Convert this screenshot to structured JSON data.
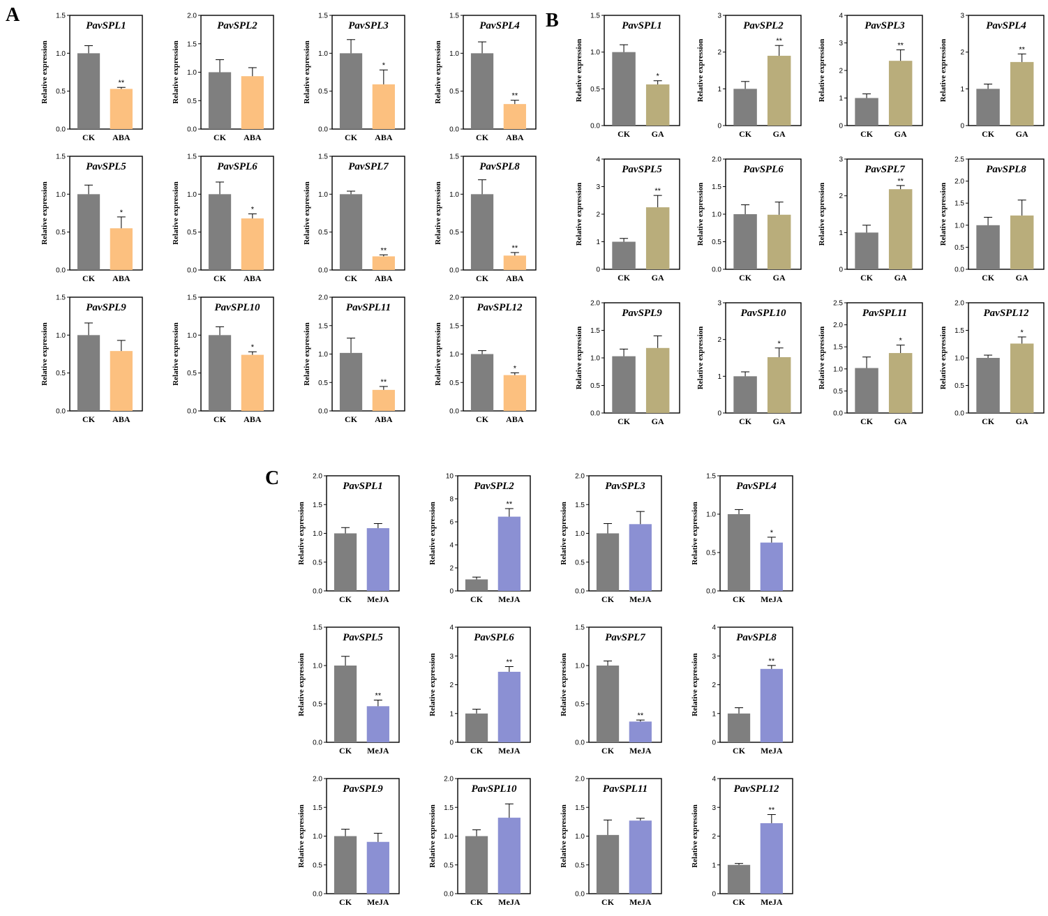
{
  "figure": {
    "colors": {
      "ck": "#7f7f7f",
      "aba": "#fcc07f",
      "ga": "#b9ad7b",
      "meja": "#8b90d3"
    },
    "treatment_labels": {
      "A": "ABA",
      "B": "GA",
      "C": "MeJA"
    },
    "control_label": "CK",
    "y_label": "Relative expression"
  },
  "chart_data": [
    {
      "panel": "A",
      "type": "bar",
      "title": "PavSPL1",
      "categories": [
        "CK",
        "ABA"
      ],
      "values": [
        1.0,
        0.53
      ],
      "errors": [
        0.1,
        0.02
      ],
      "sig": "**",
      "ylim": [
        0,
        1.5
      ],
      "ticks": [
        "0.0",
        "0.5",
        "1.0",
        "1.5"
      ],
      "ylabel": "Relative expression"
    },
    {
      "panel": "A",
      "type": "bar",
      "title": "PavSPL2",
      "categories": [
        "CK",
        "ABA"
      ],
      "values": [
        1.0,
        0.93
      ],
      "errors": [
        0.22,
        0.15
      ],
      "sig": "",
      "ylim": [
        0,
        2
      ],
      "ticks": [
        "0.0",
        "0.5",
        "1.0",
        "1.5",
        "2.0"
      ],
      "ylabel": "Relative expression"
    },
    {
      "panel": "A",
      "type": "bar",
      "title": "PavSPL3",
      "categories": [
        "CK",
        "ABA"
      ],
      "values": [
        1.0,
        0.59
      ],
      "errors": [
        0.18,
        0.19
      ],
      "sig": "*",
      "ylim": [
        0,
        1.5
      ],
      "ticks": [
        "0.0",
        "0.5",
        "1.0",
        "1.5"
      ],
      "ylabel": "Relative expression"
    },
    {
      "panel": "A",
      "type": "bar",
      "title": "PavSPL4",
      "categories": [
        "CK",
        "ABA"
      ],
      "values": [
        1.0,
        0.33
      ],
      "errors": [
        0.15,
        0.05
      ],
      "sig": "**",
      "ylim": [
        0,
        1.5
      ],
      "ticks": [
        "0.0",
        "0.5",
        "1.0",
        "1.5"
      ],
      "ylabel": "Relative expression"
    },
    {
      "panel": "A",
      "type": "bar",
      "title": "PavSPL5",
      "categories": [
        "CK",
        "ABA"
      ],
      "values": [
        1.0,
        0.55
      ],
      "errors": [
        0.12,
        0.15
      ],
      "sig": "*",
      "ylim": [
        0,
        1.5
      ],
      "ticks": [
        "0.0",
        "0.5",
        "1.0",
        "1.5"
      ],
      "ylabel": "Relative expression"
    },
    {
      "panel": "A",
      "type": "bar",
      "title": "PavSPL6",
      "categories": [
        "CK",
        "ABA"
      ],
      "values": [
        1.0,
        0.68
      ],
      "errors": [
        0.16,
        0.06
      ],
      "sig": "*",
      "ylim": [
        0,
        1.5
      ],
      "ticks": [
        "0.0",
        "0.5",
        "1.0",
        "1.5"
      ],
      "ylabel": "Relative expression"
    },
    {
      "panel": "A",
      "type": "bar",
      "title": "PavSPL7",
      "categories": [
        "CK",
        "ABA"
      ],
      "values": [
        1.0,
        0.18
      ],
      "errors": [
        0.04,
        0.02
      ],
      "sig": "**",
      "ylim": [
        0,
        1.5
      ],
      "ticks": [
        "0.0",
        "0.5",
        "1.0",
        "1.5"
      ],
      "ylabel": "Relative expression"
    },
    {
      "panel": "A",
      "type": "bar",
      "title": "PavSPL8",
      "categories": [
        "CK",
        "ABA"
      ],
      "values": [
        1.0,
        0.19
      ],
      "errors": [
        0.19,
        0.04
      ],
      "sig": "**",
      "ylim": [
        0,
        1.5
      ],
      "ticks": [
        "0.0",
        "0.5",
        "1.0",
        "1.5"
      ],
      "ylabel": "Relative expression"
    },
    {
      "panel": "A",
      "type": "bar",
      "title": "PavSPL9",
      "categories": [
        "CK",
        "ABA"
      ],
      "values": [
        1.0,
        0.79
      ],
      "errors": [
        0.16,
        0.14
      ],
      "sig": "",
      "ylim": [
        0,
        1.5
      ],
      "ticks": [
        "0.0",
        "0.5",
        "1.0",
        "1.5"
      ],
      "ylabel": "Relative expression"
    },
    {
      "panel": "A",
      "type": "bar",
      "title": "PavSPL10",
      "categories": [
        "CK",
        "ABA"
      ],
      "values": [
        1.0,
        0.74
      ],
      "errors": [
        0.11,
        0.04
      ],
      "sig": "*",
      "ylim": [
        0,
        1.5
      ],
      "ticks": [
        "0.0",
        "0.5",
        "1.0",
        "1.5"
      ],
      "ylabel": "Relative expression"
    },
    {
      "panel": "A",
      "type": "bar",
      "title": "PavSPL11",
      "categories": [
        "CK",
        "ABA"
      ],
      "values": [
        1.02,
        0.37
      ],
      "errors": [
        0.26,
        0.06
      ],
      "sig": "**",
      "ylim": [
        0,
        2
      ],
      "ticks": [
        "0.0",
        "0.5",
        "1.0",
        "1.5",
        "2.0"
      ],
      "ylabel": "Relative expression"
    },
    {
      "panel": "A",
      "type": "bar",
      "title": "PavSPL12",
      "categories": [
        "CK",
        "ABA"
      ],
      "values": [
        1.0,
        0.63
      ],
      "errors": [
        0.06,
        0.04
      ],
      "sig": "*",
      "ylim": [
        0,
        2
      ],
      "ticks": [
        "0.0",
        "0.5",
        "1.0",
        "1.5",
        "2.0"
      ],
      "ylabel": "Relative expression"
    },
    {
      "panel": "B",
      "type": "bar",
      "title": "PavSPL1",
      "categories": [
        "CK",
        "GA"
      ],
      "values": [
        1.0,
        0.56
      ],
      "errors": [
        0.1,
        0.05
      ],
      "sig": "*",
      "ylim": [
        0,
        1.5
      ],
      "ticks": [
        "0.0",
        "0.5",
        "1.0",
        "1.5"
      ],
      "ylabel": "Relative expression"
    },
    {
      "panel": "B",
      "type": "bar",
      "title": "PavSPL2",
      "categories": [
        "CK",
        "GA"
      ],
      "values": [
        1.0,
        1.9
      ],
      "errors": [
        0.2,
        0.28
      ],
      "sig": "**",
      "ylim": [
        0,
        3
      ],
      "ticks": [
        "0",
        "1",
        "2",
        "3"
      ],
      "ylabel": "Relative expression"
    },
    {
      "panel": "B",
      "type": "bar",
      "title": "PavSPL3",
      "categories": [
        "CK",
        "GA"
      ],
      "values": [
        1.0,
        2.35
      ],
      "errors": [
        0.15,
        0.4
      ],
      "sig": "**",
      "ylim": [
        0,
        4
      ],
      "ticks": [
        "0",
        "1",
        "2",
        "3",
        "4"
      ],
      "ylabel": "Relative expression"
    },
    {
      "panel": "B",
      "type": "bar",
      "title": "PavSPL4",
      "categories": [
        "CK",
        "GA"
      ],
      "values": [
        1.0,
        1.73
      ],
      "errors": [
        0.13,
        0.22
      ],
      "sig": "**",
      "ylim": [
        0,
        3
      ],
      "ticks": [
        "0",
        "1",
        "2",
        "3"
      ],
      "ylabel": "Relative expression"
    },
    {
      "panel": "B",
      "type": "bar",
      "title": "PavSPL5",
      "categories": [
        "CK",
        "GA"
      ],
      "values": [
        1.0,
        2.25
      ],
      "errors": [
        0.12,
        0.43
      ],
      "sig": "**",
      "ylim": [
        0,
        4
      ],
      "ticks": [
        "0",
        "1",
        "2",
        "3",
        "4"
      ],
      "ylabel": "Relative expression"
    },
    {
      "panel": "B",
      "type": "bar",
      "title": "PavSPL6",
      "categories": [
        "CK",
        "GA"
      ],
      "values": [
        1.0,
        0.99
      ],
      "errors": [
        0.17,
        0.23
      ],
      "sig": "",
      "ylim": [
        0,
        2
      ],
      "ticks": [
        "0.0",
        "0.5",
        "1.0",
        "1.5",
        "2.0"
      ],
      "ylabel": "Relative expression"
    },
    {
      "panel": "B",
      "type": "bar",
      "title": "PavSPL7",
      "categories": [
        "CK",
        "GA"
      ],
      "values": [
        1.0,
        2.18
      ],
      "errors": [
        0.2,
        0.1
      ],
      "sig": "**",
      "ylim": [
        0,
        3
      ],
      "ticks": [
        "0",
        "1",
        "2",
        "3"
      ],
      "ylabel": "Relative expression"
    },
    {
      "panel": "B",
      "type": "bar",
      "title": "PavSPL8",
      "categories": [
        "CK",
        "GA"
      ],
      "values": [
        1.0,
        1.22
      ],
      "errors": [
        0.18,
        0.35
      ],
      "sig": "",
      "ylim": [
        0,
        2.5
      ],
      "ticks": [
        "0.0",
        "0.5",
        "1.0",
        "1.5",
        "2.0",
        "2.5"
      ],
      "ylabel": "Relative expression"
    },
    {
      "panel": "B",
      "type": "bar",
      "title": "PavSPL9",
      "categories": [
        "CK",
        "GA"
      ],
      "values": [
        1.03,
        1.18
      ],
      "errors": [
        0.13,
        0.22
      ],
      "sig": "",
      "ylim": [
        0,
        2
      ],
      "ticks": [
        "0.0",
        "0.5",
        "1.0",
        "1.5",
        "2.0"
      ],
      "ylabel": "Relative expression"
    },
    {
      "panel": "B",
      "type": "bar",
      "title": "PavSPL10",
      "categories": [
        "CK",
        "GA"
      ],
      "values": [
        1.0,
        1.52
      ],
      "errors": [
        0.12,
        0.25
      ],
      "sig": "*",
      "ylim": [
        0,
        3
      ],
      "ticks": [
        "0",
        "1",
        "2",
        "3"
      ],
      "ylabel": "Relative expression"
    },
    {
      "panel": "B",
      "type": "bar",
      "title": "PavSPL11",
      "categories": [
        "CK",
        "GA"
      ],
      "values": [
        1.02,
        1.36
      ],
      "errors": [
        0.25,
        0.18
      ],
      "sig": "*",
      "ylim": [
        0,
        2.5
      ],
      "ticks": [
        "0.0",
        "0.5",
        "1.0",
        "1.5",
        "2.0",
        "2.5"
      ],
      "ylabel": "Relative expression"
    },
    {
      "panel": "B",
      "type": "bar",
      "title": "PavSPL12",
      "categories": [
        "CK",
        "GA"
      ],
      "values": [
        1.0,
        1.26
      ],
      "errors": [
        0.05,
        0.12
      ],
      "sig": "*",
      "ylim": [
        0,
        2
      ],
      "ticks": [
        "0.0",
        "0.5",
        "1.0",
        "1.5",
        "2.0"
      ],
      "ylabel": "Relative expression"
    },
    {
      "panel": "C",
      "type": "bar",
      "title": "PavSPL1",
      "categories": [
        "CK",
        "MeJA"
      ],
      "values": [
        1.0,
        1.09
      ],
      "errors": [
        0.1,
        0.08
      ],
      "sig": "",
      "ylim": [
        0,
        2
      ],
      "ticks": [
        "0.0",
        "0.5",
        "1.0",
        "1.5",
        "2.0"
      ],
      "ylabel": "Relative expression"
    },
    {
      "panel": "C",
      "type": "bar",
      "title": "PavSPL2",
      "categories": [
        "CK",
        "MeJA"
      ],
      "values": [
        1.0,
        6.45
      ],
      "errors": [
        0.2,
        0.7
      ],
      "sig": "**",
      "ylim": [
        0,
        10
      ],
      "ticks": [
        "0",
        "2",
        "4",
        "6",
        "8",
        "10"
      ],
      "ylabel": "Relative expression"
    },
    {
      "panel": "C",
      "type": "bar",
      "title": "PavSPL3",
      "categories": [
        "CK",
        "MeJA"
      ],
      "values": [
        1.0,
        1.16
      ],
      "errors": [
        0.17,
        0.22
      ],
      "sig": "",
      "ylim": [
        0,
        2
      ],
      "ticks": [
        "0.0",
        "0.5",
        "1.0",
        "1.5",
        "2.0"
      ],
      "ylabel": "Relative expression"
    },
    {
      "panel": "C",
      "type": "bar",
      "title": "PavSPL4",
      "categories": [
        "CK",
        "MeJA"
      ],
      "values": [
        1.0,
        0.63
      ],
      "errors": [
        0.06,
        0.07
      ],
      "sig": "*",
      "ylim": [
        0,
        1.5
      ],
      "ticks": [
        "0.0",
        "0.5",
        "1.0",
        "1.5"
      ],
      "ylabel": "Relative expression"
    },
    {
      "panel": "C",
      "type": "bar",
      "title": "PavSPL5",
      "categories": [
        "CK",
        "MeJA"
      ],
      "values": [
        1.0,
        0.47
      ],
      "errors": [
        0.12,
        0.08
      ],
      "sig": "**",
      "ylim": [
        0,
        1.5
      ],
      "ticks": [
        "0.0",
        "0.5",
        "1.0",
        "1.5"
      ],
      "ylabel": "Relative expression"
    },
    {
      "panel": "C",
      "type": "bar",
      "title": "PavSPL6",
      "categories": [
        "CK",
        "MeJA"
      ],
      "values": [
        1.0,
        2.45
      ],
      "errors": [
        0.15,
        0.18
      ],
      "sig": "**",
      "ylim": [
        0,
        4
      ],
      "ticks": [
        "0",
        "1",
        "2",
        "3",
        "4"
      ],
      "ylabel": "Relative expression"
    },
    {
      "panel": "C",
      "type": "bar",
      "title": "PavSPL7",
      "categories": [
        "CK",
        "MeJA"
      ],
      "values": [
        1.0,
        0.27
      ],
      "errors": [
        0.06,
        0.02
      ],
      "sig": "**",
      "ylim": [
        0,
        1.5
      ],
      "ticks": [
        "0.0",
        "0.5",
        "1.0",
        "1.5"
      ],
      "ylabel": "Relative expression"
    },
    {
      "panel": "C",
      "type": "bar",
      "title": "PavSPL8",
      "categories": [
        "CK",
        "MeJA"
      ],
      "values": [
        1.0,
        2.55
      ],
      "errors": [
        0.2,
        0.12
      ],
      "sig": "**",
      "ylim": [
        0,
        4
      ],
      "ticks": [
        "0",
        "1",
        "2",
        "3",
        "4"
      ],
      "ylabel": "Relative expression"
    },
    {
      "panel": "C",
      "type": "bar",
      "title": "PavSPL9",
      "categories": [
        "CK",
        "MeJA"
      ],
      "values": [
        1.0,
        0.9
      ],
      "errors": [
        0.12,
        0.15
      ],
      "sig": "",
      "ylim": [
        0,
        2
      ],
      "ticks": [
        "0.0",
        "0.5",
        "1.0",
        "1.5",
        "2.0"
      ],
      "ylabel": "Relative expression",
      "title_style": "normal"
    },
    {
      "panel": "C",
      "type": "bar",
      "title": "PavSPL10",
      "categories": [
        "CK",
        "MeJA"
      ],
      "values": [
        1.0,
        1.32
      ],
      "errors": [
        0.11,
        0.24
      ],
      "sig": "",
      "ylim": [
        0,
        2
      ],
      "ticks": [
        "0.0",
        "0.5",
        "1.0",
        "1.5",
        "2.0"
      ],
      "ylabel": "Relative expression"
    },
    {
      "panel": "C",
      "type": "bar",
      "title": "PavSPL11",
      "categories": [
        "CK",
        "MeJA"
      ],
      "values": [
        1.02,
        1.27
      ],
      "errors": [
        0.26,
        0.04
      ],
      "sig": "",
      "ylim": [
        0,
        2
      ],
      "ticks": [
        "0.0",
        "0.5",
        "1.0",
        "1.5",
        "2.0"
      ],
      "ylabel": "Relative expression"
    },
    {
      "panel": "C",
      "type": "bar",
      "title": "PavSPL12",
      "categories": [
        "CK",
        "MeJA"
      ],
      "values": [
        1.0,
        2.45
      ],
      "errors": [
        0.05,
        0.3
      ],
      "sig": "**",
      "ylim": [
        0,
        4
      ],
      "ticks": [
        "0",
        "1",
        "2",
        "3",
        "4"
      ],
      "ylabel": "Relative expression"
    }
  ]
}
